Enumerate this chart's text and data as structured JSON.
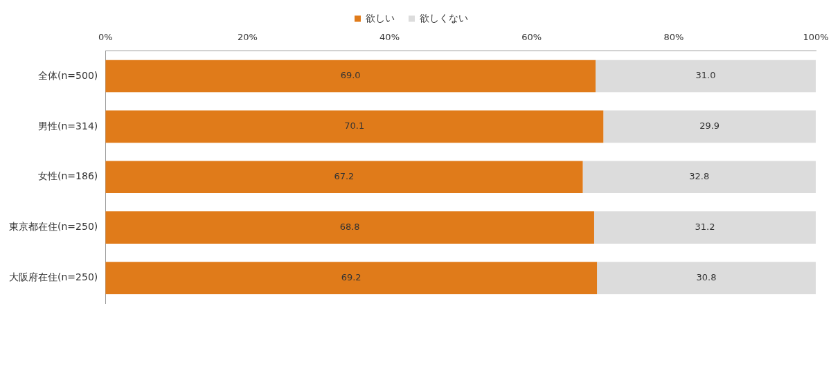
{
  "chart_data": {
    "type": "bar",
    "orientation": "horizontal",
    "stacked": true,
    "categories": [
      "全体(n=500)",
      "男性(n=314)",
      "女性(n=186)",
      "東京都在住(n=250)",
      "大阪府在住(n=250)"
    ],
    "series": [
      {
        "name": "欲しい",
        "color": "#e07b1a",
        "values": [
          69.0,
          70.1,
          67.2,
          68.8,
          69.2
        ],
        "value_labels": [
          "69.0",
          "70.1",
          "67.2",
          "68.8",
          "69.2"
        ]
      },
      {
        "name": "欲しくない",
        "color": "#dcdcdc",
        "values": [
          31.0,
          29.9,
          32.8,
          31.2,
          30.8
        ],
        "value_labels": [
          "31.0",
          "29.9",
          "32.8",
          "31.2",
          "30.8"
        ]
      }
    ],
    "xlim": [
      0,
      100
    ],
    "xticks": [
      {
        "value": 0,
        "label": "0%"
      },
      {
        "value": 20,
        "label": "20%"
      },
      {
        "value": 40,
        "label": "40%"
      },
      {
        "value": 60,
        "label": "60%"
      },
      {
        "value": 80,
        "label": "80%"
      },
      {
        "value": 100,
        "label": "100%"
      }
    ],
    "legend": "top",
    "grid": false
  }
}
